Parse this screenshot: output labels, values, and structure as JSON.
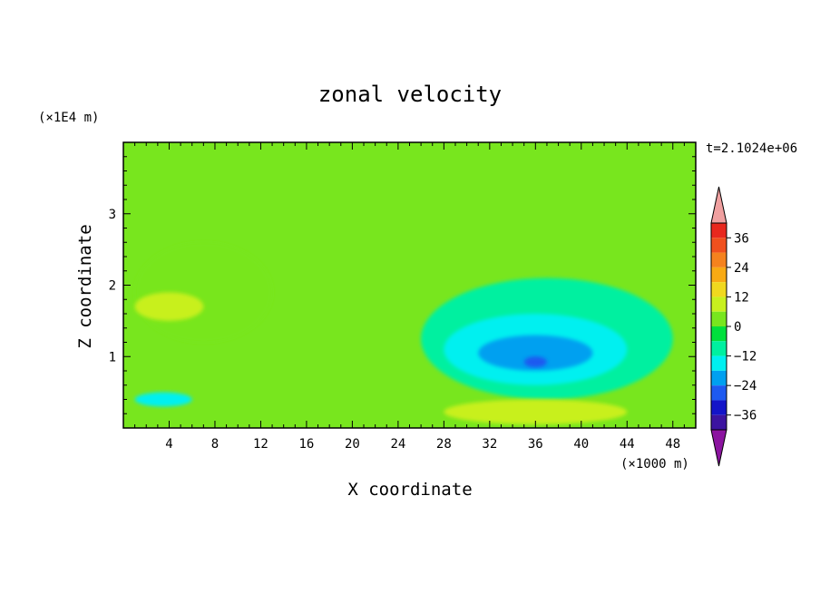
{
  "chart_data": {
    "type": "heatmap",
    "title": "zonal velocity",
    "xlabel": "X coordinate",
    "ylabel": "Z coordinate",
    "x_unit": "(×1000 m)",
    "y_unit": "(×1E4 m)",
    "time_label": "t=2.1024e+06",
    "xlim": [
      0,
      50
    ],
    "ylim": [
      0,
      4
    ],
    "x_ticks": [
      "4",
      "8",
      "12",
      "16",
      "20",
      "24",
      "28",
      "32",
      "36",
      "40",
      "44",
      "48"
    ],
    "x_tick_values": [
      4,
      8,
      12,
      16,
      20,
      24,
      28,
      32,
      36,
      40,
      44,
      48
    ],
    "y_ticks": [
      "1",
      "2",
      "3"
    ],
    "y_tick_values": [
      1,
      2,
      3
    ],
    "colorbar": {
      "labels": [
        "36",
        "24",
        "12",
        "0",
        "−12",
        "−24",
        "−36"
      ],
      "label_values": [
        36,
        24,
        12,
        0,
        -12,
        -24,
        -36
      ],
      "levels": [
        {
          "lo": 36,
          "hi": 42,
          "color": "#e8281e"
        },
        {
          "lo": 30,
          "hi": 36,
          "color": "#f0501e"
        },
        {
          "lo": 24,
          "hi": 30,
          "color": "#f5821e"
        },
        {
          "lo": 18,
          "hi": 24,
          "color": "#f8aa14"
        },
        {
          "lo": 12,
          "hi": 18,
          "color": "#f0d81e"
        },
        {
          "lo": 6,
          "hi": 12,
          "color": "#c8f01e"
        },
        {
          "lo": 0,
          "hi": 6,
          "color": "#78e61e"
        },
        {
          "lo": -6,
          "hi": 0,
          "color": "#00e03c"
        },
        {
          "lo": -12,
          "hi": -6,
          "color": "#00f0a0"
        },
        {
          "lo": -18,
          "hi": -12,
          "color": "#00f0f0"
        },
        {
          "lo": -24,
          "hi": -18,
          "color": "#00a0f0"
        },
        {
          "lo": -30,
          "hi": -24,
          "color": "#1e5af0"
        },
        {
          "lo": -36,
          "hi": -30,
          "color": "#1414c8"
        },
        {
          "lo": -42,
          "hi": -36,
          "color": "#3c14a0"
        }
      ],
      "over_color": "#f0a0a0",
      "under_color": "#8c14a0"
    },
    "regions": [
      {
        "level": 0,
        "x": [
          0,
          50
        ],
        "z": [
          0,
          4
        ],
        "note": "background field around 0 (green)"
      },
      {
        "level": 3,
        "x": [
          1,
          13
        ],
        "z": [
          1.2,
          2.6
        ],
        "note": "positive lobe left mid-level"
      },
      {
        "level": 9,
        "x": [
          1,
          7
        ],
        "z": [
          1.5,
          1.9
        ],
        "note": "core ~+9"
      },
      {
        "level": -9,
        "x": [
          26,
          48
        ],
        "z": [
          0.4,
          2.1
        ],
        "note": "negative region"
      },
      {
        "level": -15,
        "x": [
          28,
          44
        ],
        "z": [
          0.6,
          1.6
        ],
        "note": "cyan core"
      },
      {
        "level": -21,
        "x": [
          31,
          41
        ],
        "z": [
          0.8,
          1.3
        ],
        "note": "blue core ~-21"
      },
      {
        "level": -27,
        "x": [
          35,
          37
        ],
        "z": [
          0.85,
          1.0
        ],
        "note": "deep core ~-27"
      },
      {
        "level": 9,
        "x": [
          28,
          44
        ],
        "z": [
          0.05,
          0.4
        ],
        "note": "near-surface positive ~+9"
      },
      {
        "level": -15,
        "x": [
          1,
          6
        ],
        "z": [
          0.3,
          0.5
        ],
        "note": "near-surface negative left"
      }
    ]
  }
}
